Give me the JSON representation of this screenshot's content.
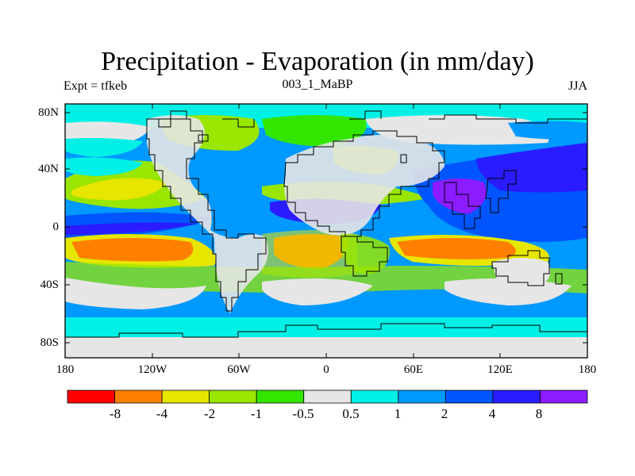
{
  "title": "Precipitation - Evaporation (in mm/day)",
  "subtitle_left": "Expt = tfkeb",
  "subtitle_center": "003_1_MaBP",
  "subtitle_right": "JJA",
  "lat_labels": [
    "80N",
    "40N",
    "0",
    "40S",
    "80S"
  ],
  "lon_labels": [
    "180",
    "120W",
    "60W",
    "0",
    "60E",
    "120E",
    "180"
  ],
  "colorbar": {
    "colors": [
      "#ff0000",
      "#ff8000",
      "#e6e600",
      "#99e600",
      "#33e600",
      "#e6e6e6",
      "#00f0e6",
      "#0099ff",
      "#0055ff",
      "#2a1cff",
      "#8a1cff"
    ],
    "labels": [
      "-8",
      "-4",
      "-2",
      "-1",
      "-0.5",
      "0.5",
      "1",
      "2",
      "4",
      "8"
    ]
  }
}
